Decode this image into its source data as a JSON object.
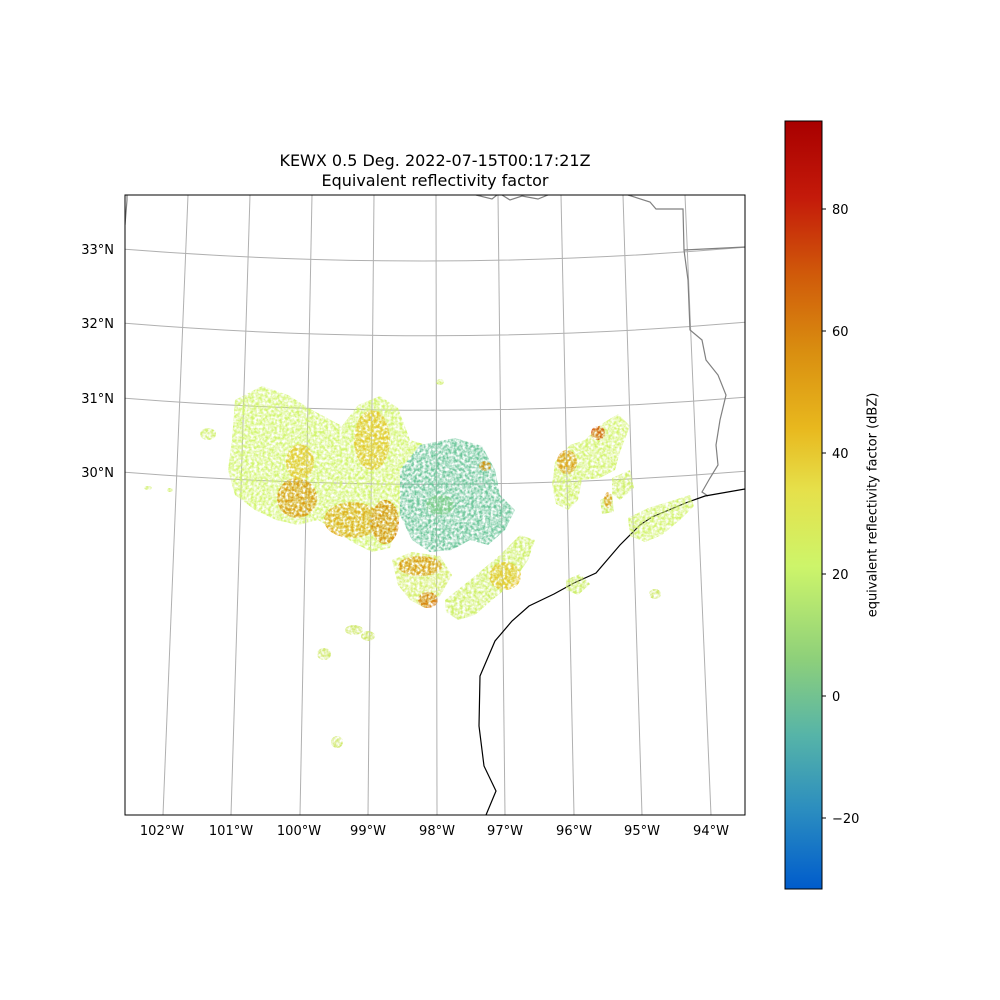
{
  "map": {
    "title_line1": "KEWX 0.5 Deg. 2022-07-15T00:17:21Z",
    "title_line2": "Equivalent reflectivity factor",
    "lat_labels": [
      "33°N",
      "32°N",
      "31°N",
      "30°N"
    ],
    "lon_labels": [
      "102°W",
      "101°W",
      "100°W",
      "99°W",
      "98°W",
      "97°W",
      "96°W",
      "95°W",
      "94°W"
    ],
    "colorbar": {
      "label": "equivalent reflectivity factor (dBZ)",
      "ticks": [
        "80",
        "60",
        "40",
        "20",
        "0",
        "−20"
      ],
      "range": [
        -32,
        94
      ],
      "colors": [
        "#005ccc",
        "#2a8cc0",
        "#56b4a8",
        "#8ed07a",
        "#cdf56a",
        "#e6e04a",
        "#e8b81e",
        "#d98e10",
        "#d05a0a",
        "#c41a0a",
        "#a80000"
      ]
    }
  }
}
